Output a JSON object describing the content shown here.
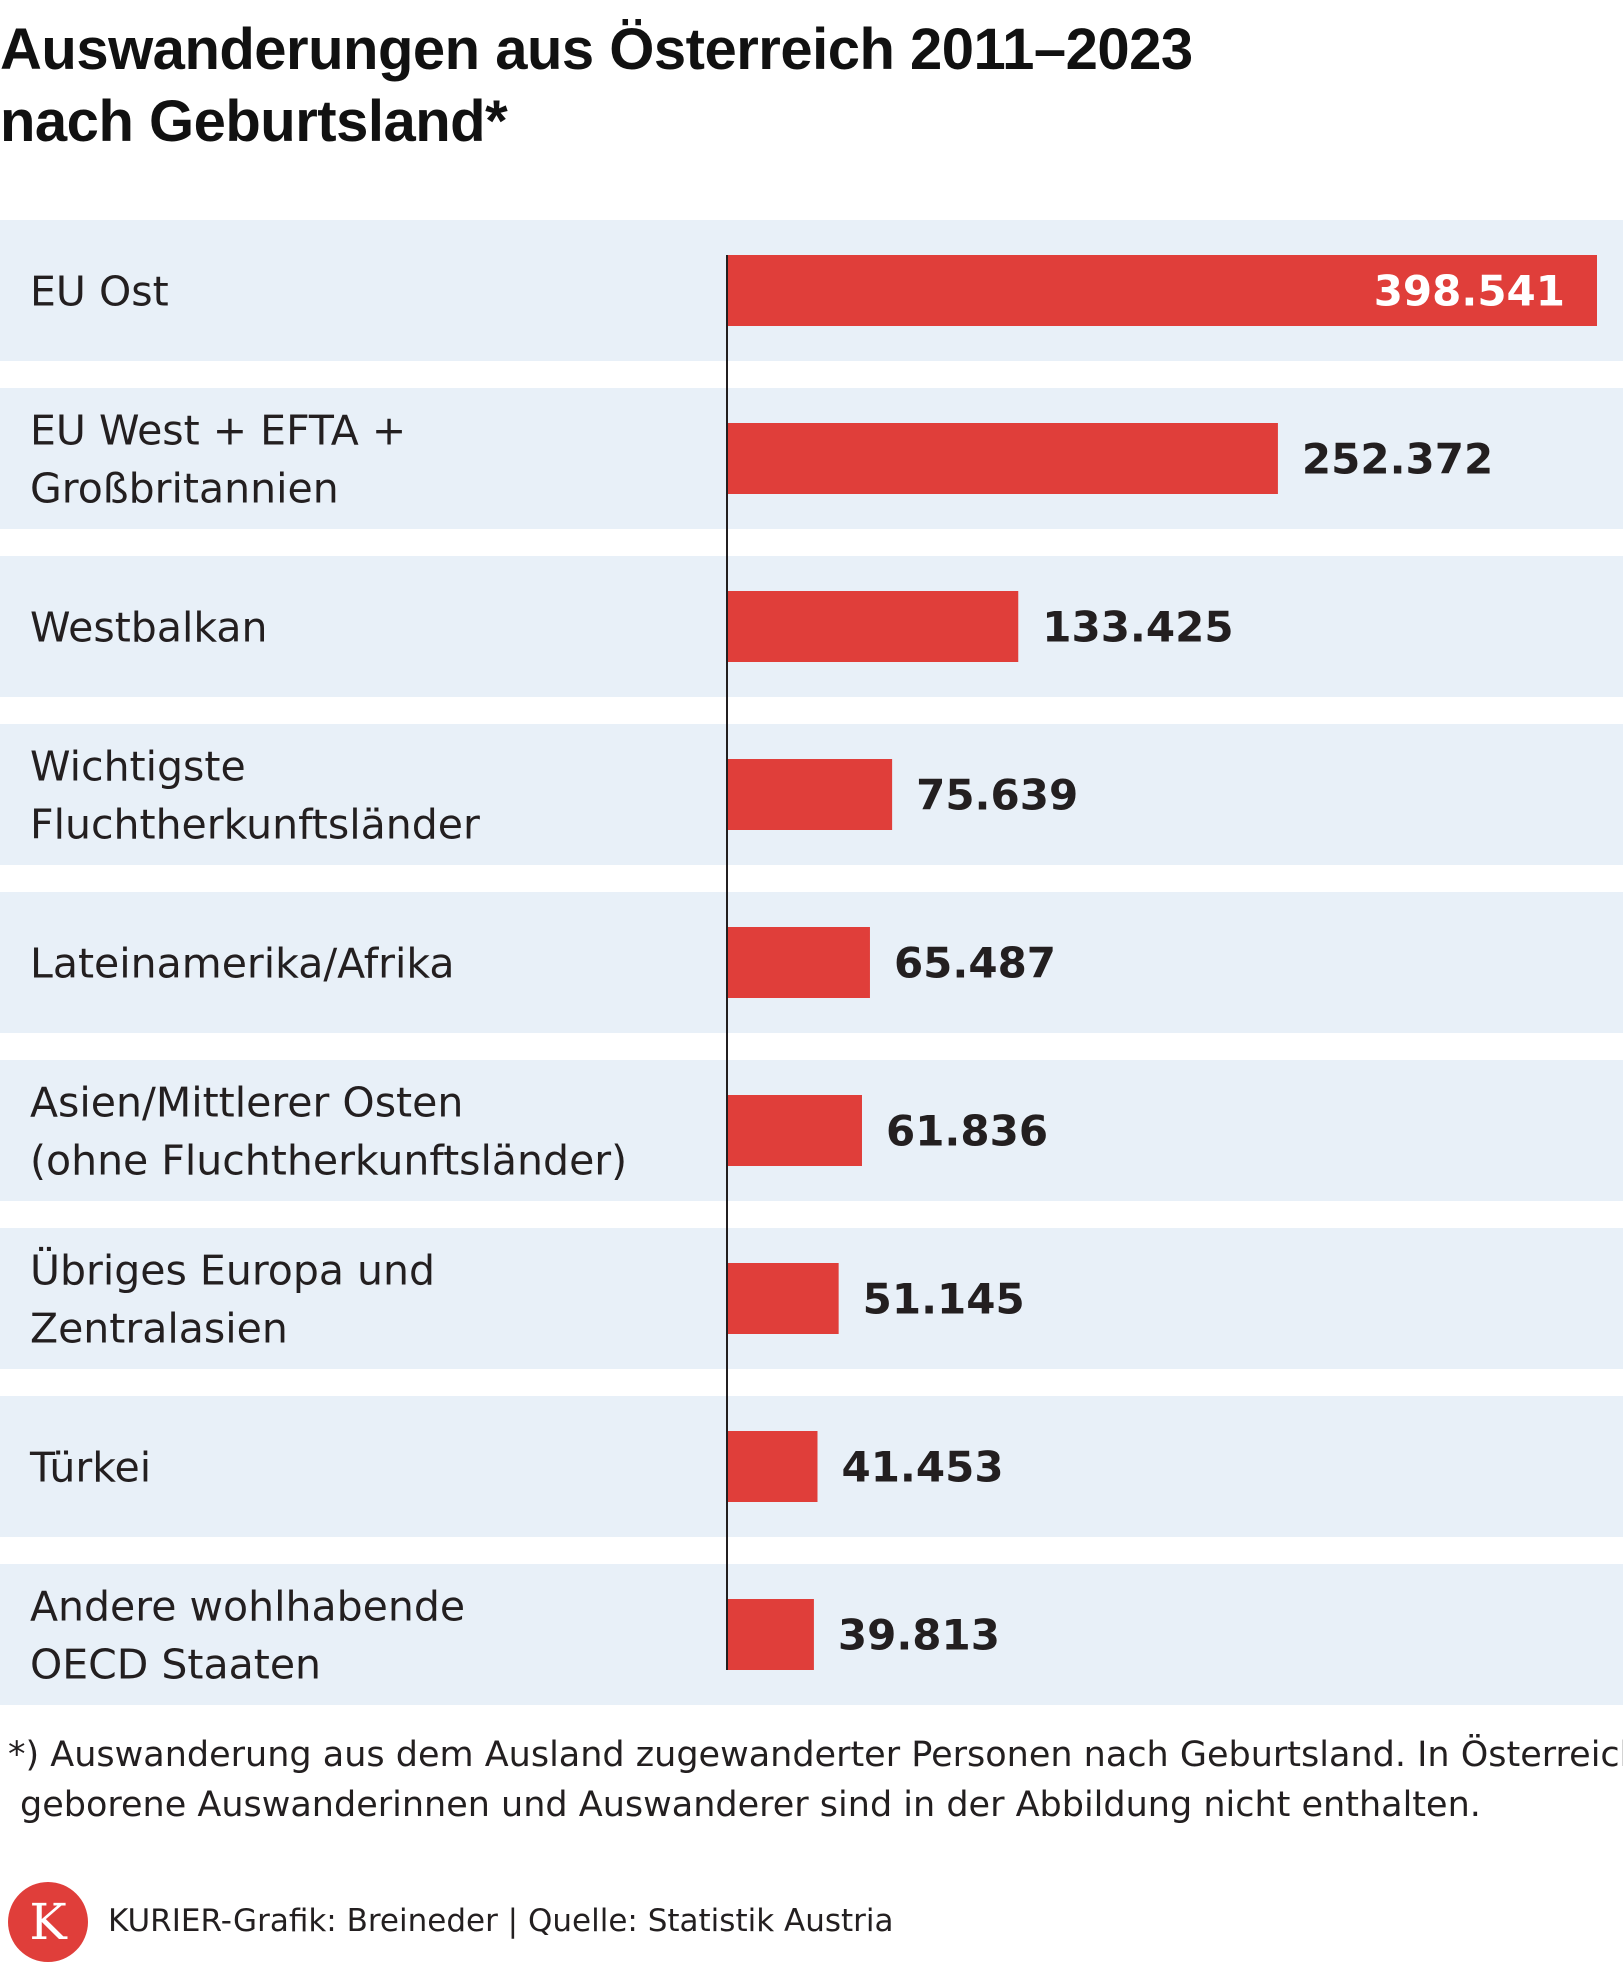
{
  "title": {
    "line1": "Auswanderungen aus Österreich 2011–2023",
    "line2": "nach Geburtsland*"
  },
  "chart_data": {
    "type": "bar",
    "orientation": "horizontal",
    "title": "Auswanderungen aus Österreich 2011–2023 nach Geburtsland*",
    "categories": [
      [
        "EU Ost"
      ],
      [
        "EU West + EFTA +",
        "Großbritannien"
      ],
      [
        "Westbalkan"
      ],
      [
        "Wichtigste",
        "Fluchtherkunftsländer"
      ],
      [
        "Lateinamerika/Afrika"
      ],
      [
        "Asien/Mittlerer Osten",
        "(ohne Fluchtherkunftsländer)"
      ],
      [
        "Übriges Europa und",
        "Zentralasien"
      ],
      [
        "Türkei"
      ],
      [
        "Andere wohlhabende",
        "OECD Staaten"
      ]
    ],
    "values": [
      398541,
      252372,
      133425,
      75639,
      65487,
      61836,
      51145,
      41453,
      39813
    ],
    "value_labels": [
      "398.541",
      "252.372",
      "133.425",
      "75.639",
      "65.487",
      "61.836",
      "51.145",
      "41.453",
      "39.813"
    ],
    "xlim": [
      0,
      398541
    ],
    "grid": false,
    "xlabel": "",
    "ylabel": ""
  },
  "colors": {
    "bar": "#e03e3a",
    "row_band": "#e8f0f8",
    "axis": "#231f20",
    "label_text": "#231f20",
    "label_inside": "#ffffff"
  },
  "footnote": {
    "line1": "*) Auswanderung aus dem Ausland zugewanderter Personen nach Geburtsland. In Österreich",
    "line2": "geborene Auswanderinnen und Auswanderer sind in der Abbildung nicht enthalten."
  },
  "logo": {
    "letter": "K",
    "icon": "kurier-logo"
  },
  "credit": "KURIER-Grafik: Breineder | Quelle: Statistik Austria"
}
